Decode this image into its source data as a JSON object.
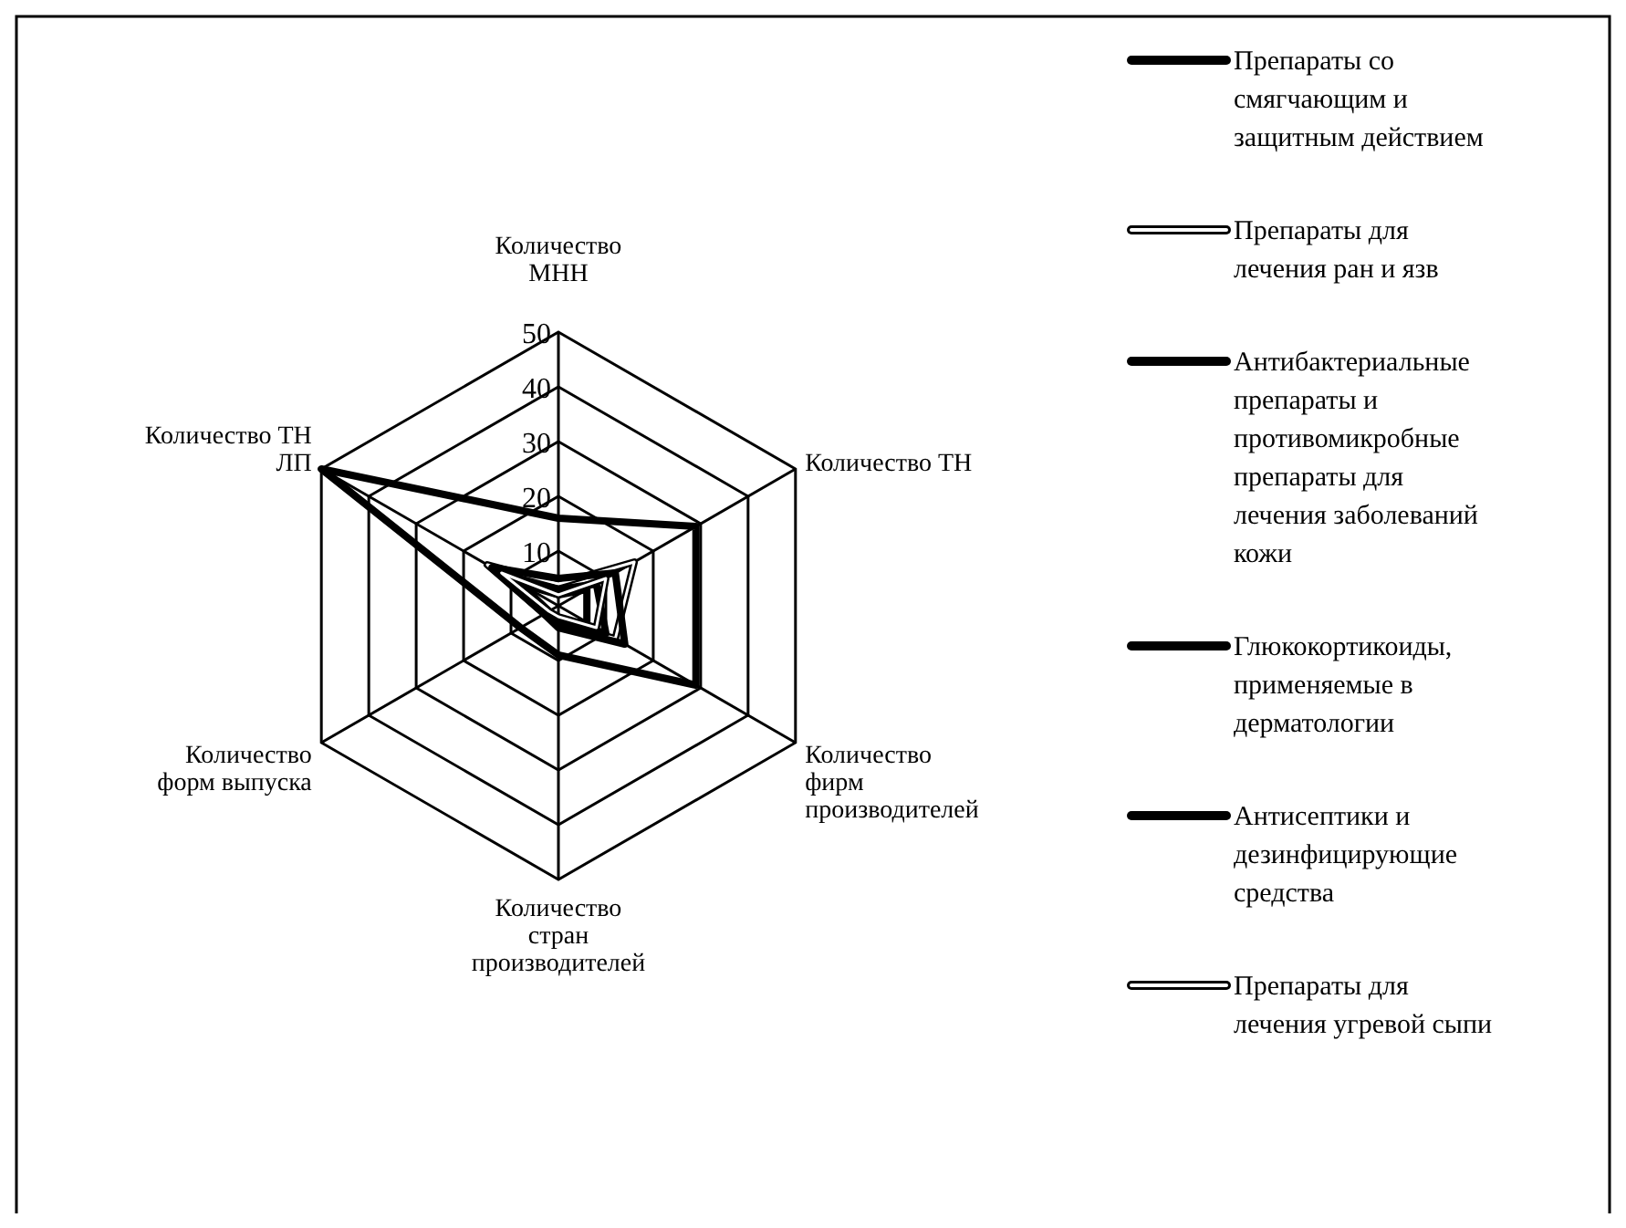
{
  "chart_data": {
    "type": "radar",
    "categories": [
      "Количество МНН",
      "Количество ТН",
      "Количество фирм производителей",
      "Количество стран производителей",
      "Количество форм выпуска",
      "Количество ТН ЛП"
    ],
    "ylim": [
      0,
      50
    ],
    "yticks": [
      10,
      20,
      30,
      40,
      50
    ],
    "grid": true,
    "legend": "right",
    "series": [
      {
        "name": "Препараты со смягчающим и защитным действием",
        "color": "#000000",
        "values": [
          16,
          29,
          29,
          9,
          8,
          50
        ]
      },
      {
        "name": "Препараты для лечения ран и язв",
        "color": "#ffffff",
        "values": [
          4,
          16,
          12,
          3,
          3,
          15
        ]
      },
      {
        "name": "Антибактериальные препараты и противомикробные препараты для лечения заболеваний кожи",
        "color": "#000000",
        "values": [
          5,
          12,
          14,
          4,
          3,
          14
        ]
      },
      {
        "name": "Глюкокортикоиды, применяемые в дерматологии",
        "color": "#000000",
        "values": [
          3,
          8,
          10,
          3,
          2,
          10
        ]
      },
      {
        "name": "Антисептики и дезинфицирующие средства",
        "color": "#000000",
        "values": [
          2,
          6,
          6,
          3,
          2,
          8
        ]
      },
      {
        "name": "Препараты для лечения угревой сыпи",
        "color": "#ffffff",
        "values": [
          2,
          10,
          8,
          2,
          2,
          12
        ]
      }
    ]
  }
}
